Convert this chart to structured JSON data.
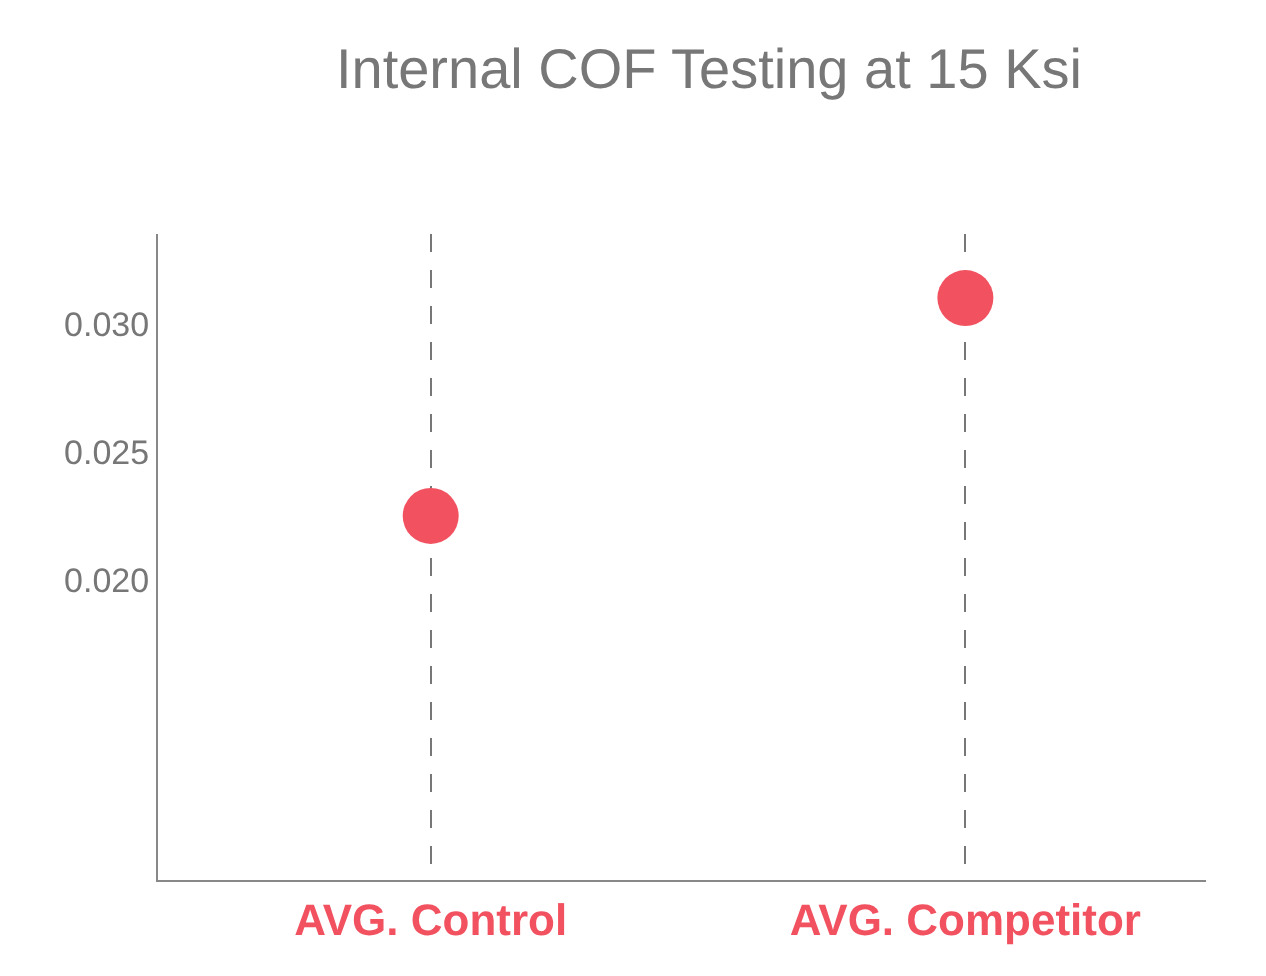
{
  "chart_data": {
    "type": "scatter",
    "title": "Internal COF Testing at 15 Ksi",
    "categories": [
      "AVG. Control",
      "AVG. Competitor"
    ],
    "series": [
      {
        "color": "#f25260",
        "values": [
          0.0225,
          0.031
        ]
      }
    ],
    "ylim": [
      0.0083,
      0.0335
    ],
    "yticks": [
      {
        "value": 0.02,
        "label": "0.020"
      },
      {
        "value": 0.025,
        "label": "0.025"
      },
      {
        "value": 0.03,
        "label": "0.030"
      }
    ],
    "grid": "x",
    "line_style": "dashed",
    "marker": "circle"
  }
}
